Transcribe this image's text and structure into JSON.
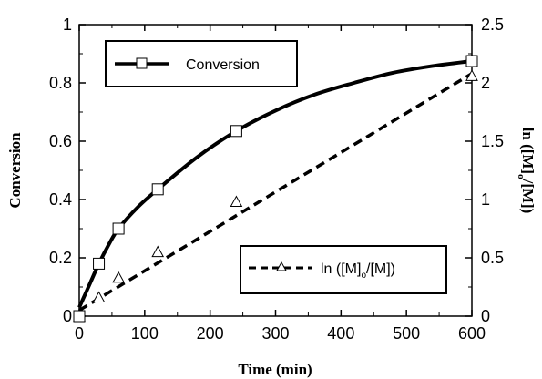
{
  "chart_data": {
    "type": "line",
    "xlabel": "Time (min)",
    "ylabel": "Conversion",
    "y2label": "ln ([M]o/[M])",
    "y2label_parts": {
      "pre": "ln ([M]",
      "sub": "o",
      "post": "/[M])"
    },
    "xlim": [
      0,
      600
    ],
    "ylim": [
      0,
      1
    ],
    "y2lim": [
      0,
      2.5
    ],
    "x_ticks": [
      "0",
      "100",
      "200",
      "300",
      "400",
      "500",
      "600"
    ],
    "y_ticks": [
      "0",
      "0.2",
      "0.4",
      "0.6",
      "0.8",
      "1"
    ],
    "y2_ticks": [
      "0",
      "0.5",
      "1",
      "1.5",
      "2",
      "2.5"
    ],
    "grid": false,
    "series": [
      {
        "name": "Conversion",
        "axis": "left",
        "marker": "square",
        "line_style": "solid",
        "x": [
          0,
          30,
          60,
          120,
          240,
          600
        ],
        "y": [
          0.0,
          0.18,
          0.3,
          0.435,
          0.635,
          0.875
        ],
        "fit_x": [
          0,
          15,
          30,
          45,
          60,
          90,
          120,
          180,
          240,
          300,
          360,
          420,
          480,
          540,
          600
        ],
        "fit_y": [
          0.03,
          0.105,
          0.18,
          0.245,
          0.3,
          0.375,
          0.435,
          0.545,
          0.635,
          0.705,
          0.76,
          0.8,
          0.835,
          0.858,
          0.875
        ]
      },
      {
        "name": "ln ([M]o/[M])",
        "name_parts": {
          "pre": "ln ([M]",
          "sub": "o",
          "post": "/[M])"
        },
        "axis": "right",
        "marker": "triangle",
        "line_style": "dashed",
        "x": [
          0,
          30,
          60,
          120,
          240,
          600
        ],
        "y": [
          0.0,
          0.16,
          0.33,
          0.55,
          0.98,
          2.06
        ],
        "fit_x": [
          0,
          600
        ],
        "fit_y": [
          0.05,
          2.08
        ]
      }
    ],
    "legend": [
      {
        "series": 0,
        "placement": "top-left"
      },
      {
        "series": 1,
        "placement": "bottom-right"
      }
    ]
  }
}
